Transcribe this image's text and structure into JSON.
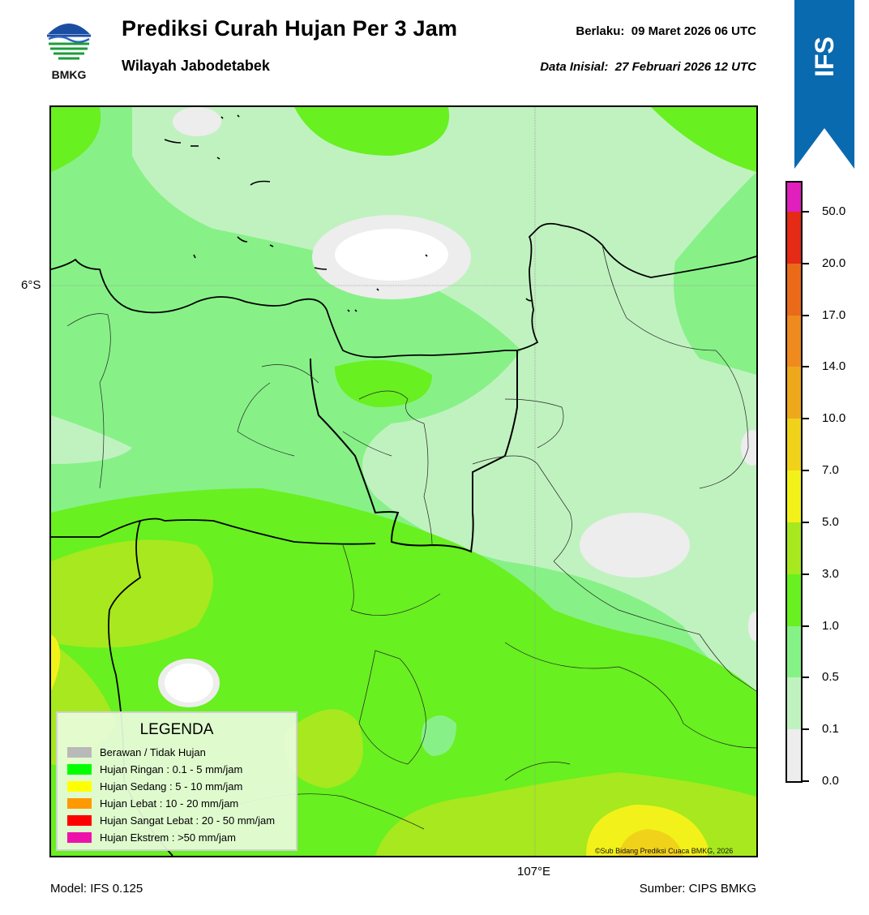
{
  "header": {
    "logo_text": "BMKG",
    "title": "Prediksi Curah Hujan Per 3 Jam",
    "subtitle": "Wilayah Jabodetabek",
    "valid_label": "Berlaku:",
    "valid_value": "09 Maret 2026 06 UTC",
    "init_label": "Data Inisial:",
    "init_value": "27 Februari 2026 12 UTC",
    "model_badge": "IFS"
  },
  "map": {
    "lat_label": "6°S",
    "lon_label": "107°E",
    "copyright": "©Sub Bidang Prediksi Cuaca BMKG, 2026"
  },
  "legend": {
    "title": "LEGENDA",
    "items": [
      {
        "label": "Berawan / Tidak Hujan",
        "color": "#b9b9b9"
      },
      {
        "label": "Hujan Ringan : 0.1 - 5 mm/jam",
        "color": "#00ff00"
      },
      {
        "label": "Hujan Sedang : 5 - 10 mm/jam",
        "color": "#ffff00"
      },
      {
        "label": "Hujan Lebat : 10 - 20 mm/jam",
        "color": "#ff9900"
      },
      {
        "label": "Hujan Sangat Lebat : 20 - 50 mm/jam",
        "color": "#ff0000"
      },
      {
        "label": "Hujan Ekstrem : >50 mm/jam",
        "color": "#ee11aa"
      }
    ]
  },
  "colorbar": {
    "labels": [
      "50.0",
      "20.0",
      "17.0",
      "14.0",
      "10.0",
      "7.0",
      "5.0",
      "3.0",
      "1.0",
      "0.5",
      "0.1",
      "0.0"
    ],
    "colors": [
      "#e01fbd",
      "#e52a16",
      "#ea6a1a",
      "#ef8a1e",
      "#eea81c",
      "#f1d21a",
      "#f2f21a",
      "#a7e81e",
      "#68f020",
      "#85f286",
      "#c0f2c0",
      "#ededed"
    ]
  },
  "footer": {
    "model": "Model: IFS 0.125",
    "source": "Sumber: CIPS BMKG"
  }
}
